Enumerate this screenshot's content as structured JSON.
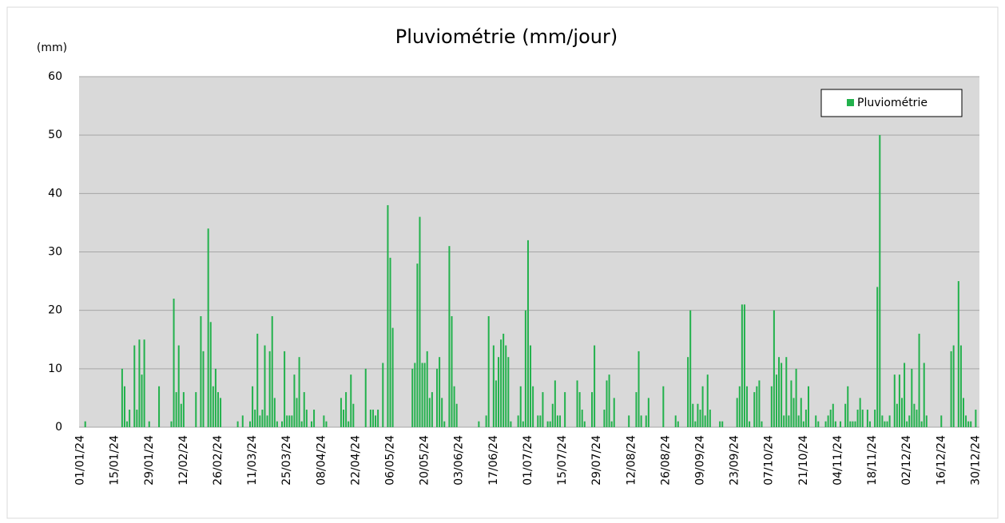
{
  "chart_data": {
    "type": "bar",
    "title": "Pluviométrie (mm/jour)",
    "y_label": "(mm)",
    "categories": [
      "01/01/24",
      null,
      null,
      null,
      null,
      null,
      null,
      null,
      null,
      null,
      null,
      null,
      null,
      null,
      "15/01/24",
      null,
      null,
      null,
      null,
      null,
      null,
      null,
      null,
      null,
      null,
      null,
      null,
      null,
      "29/01/24",
      null,
      null,
      null,
      null,
      null,
      null,
      null,
      null,
      null,
      null,
      null,
      null,
      null,
      "12/02/24",
      null,
      null,
      null,
      null,
      null,
      null,
      null,
      null,
      null,
      null,
      null,
      null,
      null,
      "26/02/24",
      null,
      null,
      null,
      null,
      null,
      null,
      null,
      null,
      null,
      null,
      null,
      null,
      null,
      "11/03/24",
      null,
      null,
      null,
      null,
      null,
      null,
      null,
      null,
      null,
      null,
      null,
      null,
      null,
      "25/03/24",
      null,
      null,
      null,
      null,
      null,
      null,
      null,
      null,
      null,
      null,
      null,
      null,
      null,
      "08/04/24",
      null,
      null,
      null,
      null,
      null,
      null,
      null,
      null,
      null,
      null,
      null,
      null,
      null,
      "22/04/24",
      null,
      null,
      null,
      null,
      null,
      null,
      null,
      null,
      null,
      null,
      null,
      null,
      null,
      "06/05/24",
      null,
      null,
      null,
      null,
      null,
      null,
      null,
      null,
      null,
      null,
      null,
      null,
      null,
      "20/05/24",
      null,
      null,
      null,
      null,
      null,
      null,
      null,
      null,
      null,
      null,
      null,
      null,
      null,
      "03/06/24",
      null,
      null,
      null,
      null,
      null,
      null,
      null,
      null,
      null,
      null,
      null,
      null,
      null,
      "17/06/24",
      null,
      null,
      null,
      null,
      null,
      null,
      null,
      null,
      null,
      null,
      null,
      null,
      null,
      "01/07/24",
      null,
      null,
      null,
      null,
      null,
      null,
      null,
      null,
      null,
      null,
      null,
      null,
      null,
      "15/07/24",
      null,
      null,
      null,
      null,
      null,
      null,
      null,
      null,
      null,
      null,
      null,
      null,
      null,
      "29/07/24",
      null,
      null,
      null,
      null,
      null,
      null,
      null,
      null,
      null,
      null,
      null,
      null,
      null,
      "12/08/24",
      null,
      null,
      null,
      null,
      null,
      null,
      null,
      null,
      null,
      null,
      null,
      null,
      null,
      "26/08/24",
      null,
      null,
      null,
      null,
      null,
      null,
      null,
      null,
      null,
      null,
      null,
      null,
      null,
      "09/09/24",
      null,
      null,
      null,
      null,
      null,
      null,
      null,
      null,
      null,
      null,
      null,
      null,
      null,
      "23/09/24",
      null,
      null,
      null,
      null,
      null,
      null,
      null,
      null,
      null,
      null,
      null,
      null,
      null,
      "07/10/24",
      null,
      null,
      null,
      null,
      null,
      null,
      null,
      null,
      null,
      null,
      null,
      null,
      null,
      "21/10/24",
      null,
      null,
      null,
      null,
      null,
      null,
      null,
      null,
      null,
      null,
      null,
      null,
      null,
      "04/11/24",
      null,
      null,
      null,
      null,
      null,
      null,
      null,
      null,
      null,
      null,
      null,
      null,
      null,
      "18/11/24",
      null,
      null,
      null,
      null,
      null,
      null,
      null,
      null,
      null,
      null,
      null,
      null,
      null,
      "02/12/24",
      null,
      null,
      null,
      null,
      null,
      null,
      null,
      null,
      null,
      null,
      null,
      null,
      null,
      "16/12/24",
      null,
      null,
      null,
      null,
      null,
      null,
      null,
      null,
      null,
      null,
      null,
      null,
      null,
      "30/12/24",
      null
    ],
    "series": [
      {
        "name": "Pluviométrie",
        "color": "#22b14c",
        "values": [
          0,
          0,
          1,
          0,
          0,
          0,
          0,
          0,
          0,
          0,
          0,
          0,
          0,
          0,
          0,
          0,
          0,
          10,
          7,
          1,
          3,
          0,
          14,
          3,
          15,
          9,
          15,
          0,
          1,
          0,
          0,
          0,
          7,
          0,
          0,
          0,
          0,
          1,
          22,
          6,
          14,
          4,
          6,
          0,
          0,
          0,
          0,
          6,
          0,
          19,
          13,
          0,
          34,
          18,
          7,
          10,
          6,
          5,
          0,
          0,
          0,
          0,
          0,
          0,
          1,
          0,
          2,
          0,
          0,
          1,
          7,
          3,
          16,
          2,
          3,
          14,
          2,
          13,
          19,
          5,
          1,
          0,
          1,
          13,
          2,
          2,
          2,
          9,
          5,
          12,
          1,
          6,
          3,
          0,
          1,
          3,
          0,
          0,
          0,
          2,
          1,
          0,
          0,
          0,
          0,
          0,
          5,
          3,
          6,
          1,
          9,
          4,
          0,
          0,
          0,
          0,
          10,
          0,
          3,
          3,
          2,
          3,
          0,
          11,
          0,
          38,
          29,
          17,
          0,
          0,
          0,
          0,
          0,
          0,
          0,
          10,
          11,
          28,
          36,
          11,
          11,
          13,
          5,
          6,
          0,
          10,
          12,
          5,
          1,
          0,
          31,
          19,
          7,
          4,
          0,
          0,
          0,
          0,
          0,
          0,
          0,
          0,
          1,
          0,
          0,
          2,
          19,
          0,
          14,
          8,
          12,
          15,
          16,
          14,
          12,
          1,
          0,
          0,
          2,
          7,
          1,
          20,
          32,
          14,
          7,
          0,
          2,
          2,
          6,
          0,
          1,
          1,
          4,
          8,
          2,
          2,
          0,
          6,
          0,
          0,
          0,
          0,
          8,
          6,
          3,
          1,
          0,
          0,
          6,
          14,
          0,
          0,
          0,
          3,
          8,
          9,
          1,
          5,
          0,
          0,
          0,
          0,
          0,
          2,
          0,
          0,
          6,
          13,
          2,
          0,
          2,
          5,
          0,
          0,
          0,
          0,
          0,
          7,
          0,
          0,
          0,
          0,
          2,
          1,
          0,
          0,
          0,
          12,
          20,
          4,
          1,
          4,
          3,
          7,
          2,
          9,
          3,
          0,
          0,
          0,
          1,
          1,
          0,
          0,
          0,
          0,
          0,
          5,
          7,
          21,
          21,
          7,
          1,
          0,
          6,
          7,
          8,
          1,
          0,
          0,
          0,
          7,
          20,
          9,
          12,
          11,
          2,
          12,
          2,
          8,
          5,
          10,
          2,
          5,
          1,
          3,
          7,
          0,
          0,
          2,
          1,
          0,
          0,
          1,
          2,
          3,
          4,
          1,
          0,
          1,
          0,
          4,
          7,
          1,
          1,
          1,
          3,
          5,
          3,
          0,
          3,
          1,
          0,
          3,
          24,
          50,
          2,
          1,
          1,
          2,
          0,
          9,
          4,
          9,
          5,
          11,
          1,
          2,
          10,
          4,
          3,
          16,
          1,
          11,
          2,
          0,
          0,
          0,
          0,
          0,
          2,
          0,
          0,
          0,
          13,
          14,
          0,
          25,
          14,
          5,
          2,
          1,
          1,
          0,
          3,
          0
        ]
      }
    ],
    "ylim": [
      0,
      60
    ],
    "yticks": [
      0,
      10,
      20,
      30,
      40,
      50,
      60
    ],
    "grid": true,
    "legend": "top-right"
  }
}
